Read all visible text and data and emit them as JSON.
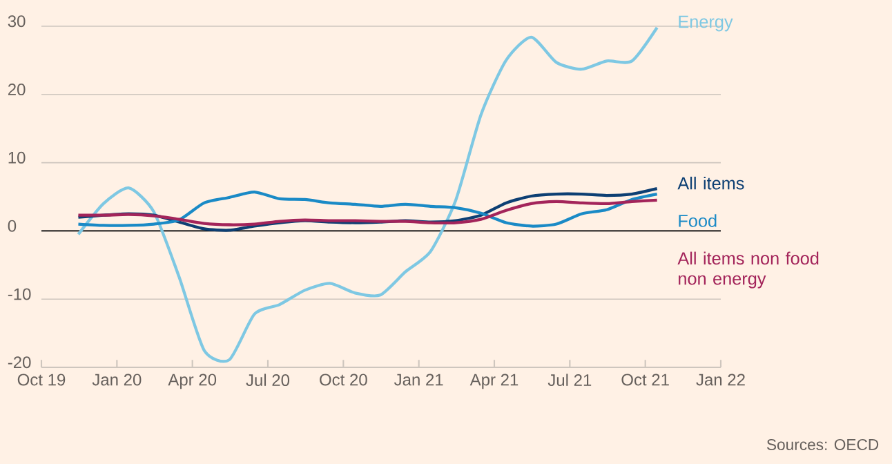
{
  "chart_data": {
    "type": "line",
    "annotations": [
      "Sources: OECD"
    ],
    "x": [
      "2019-11-15",
      "2019-12-15",
      "2020-01-15",
      "2020-02-15",
      "2020-03-15",
      "2020-04-15",
      "2020-05-15",
      "2020-06-15",
      "2020-07-15",
      "2020-08-15",
      "2020-09-15",
      "2020-10-15",
      "2020-11-15",
      "2020-12-15",
      "2021-01-15",
      "2021-02-15",
      "2021-03-15",
      "2021-04-15",
      "2021-05-15",
      "2021-06-15",
      "2021-07-15",
      "2021-08-15",
      "2021-09-15",
      "2021-10-15"
    ],
    "series": [
      {
        "name": "Energy",
        "color": "#7ec8e3",
        "values": [
          -0.5,
          4,
          6.3,
          2.8,
          -6.7,
          -17.5,
          -18.9,
          -12.2,
          -10.8,
          -8.7,
          -7.7,
          -9.1,
          -9.4,
          -6,
          -3,
          4.5,
          17,
          25,
          28.4,
          24.7,
          23.7,
          24.9,
          24.9,
          29.8
        ]
      },
      {
        "name": "All items",
        "color": "#0d3f73",
        "values": [
          2,
          2.3,
          2.5,
          2.3,
          1.3,
          0.3,
          0.1,
          0.7,
          1.2,
          1.5,
          1.3,
          1.2,
          1.3,
          1.5,
          1.3,
          1.5,
          2.3,
          4.1,
          5.1,
          5.4,
          5.4,
          5.2,
          5.4,
          6.2
        ]
      },
      {
        "name": "Food",
        "color": "#1a8ac6",
        "values": [
          1,
          0.8,
          0.8,
          1,
          1.6,
          4.1,
          4.9,
          5.7,
          4.7,
          4.6,
          4.1,
          3.9,
          3.6,
          3.9,
          3.6,
          3.4,
          2.6,
          1.2,
          0.7,
          1,
          2.5,
          3.1,
          4.6,
          5.4
        ]
      },
      {
        "name": "All items non food non energy",
        "color": "#a3245a",
        "values": [
          2.3,
          2.3,
          2.4,
          2.2,
          1.7,
          1.1,
          0.9,
          1,
          1.4,
          1.6,
          1.5,
          1.5,
          1.4,
          1.4,
          1.2,
          1.2,
          1.7,
          3,
          4,
          4.3,
          4.1,
          4,
          4.3,
          4.5
        ]
      }
    ],
    "xlim": [
      "2019-10",
      "2022-01"
    ],
    "xticks": [
      {
        "value": "2019-10",
        "label": "Oct 19"
      },
      {
        "value": "2020-01",
        "label": "Jan 20"
      },
      {
        "value": "2020-04",
        "label": "Apr 20"
      },
      {
        "value": "2020-07",
        "label": "Jul 20"
      },
      {
        "value": "2020-10",
        "label": "Oct 20"
      },
      {
        "value": "2021-01",
        "label": "Jan 21"
      },
      {
        "value": "2021-04",
        "label": "Apr 21"
      },
      {
        "value": "2021-07",
        "label": "Jul 21"
      },
      {
        "value": "2021-10",
        "label": "Oct 21"
      },
      {
        "value": "2022-01",
        "label": "Jan 22"
      }
    ],
    "ylim": [
      -20,
      30
    ],
    "yticks": [
      -20,
      -10,
      0,
      10,
      20,
      30
    ],
    "grid": "y"
  }
}
